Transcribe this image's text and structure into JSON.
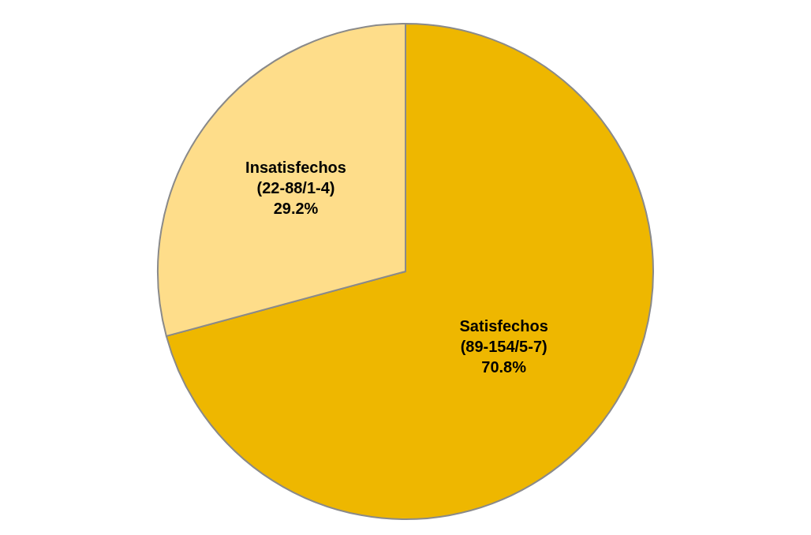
{
  "chart_data": {
    "type": "pie",
    "categories": [
      "Satisfechos\n(89-154/5-7)",
      "Insatisfechos\n(22-88/1-4)"
    ],
    "values": [
      70.8,
      29.2
    ],
    "value_labels": [
      "70.8%",
      "29.2%"
    ],
    "colors": [
      "#eeb700",
      "#fedd8a"
    ],
    "legend": false
  }
}
